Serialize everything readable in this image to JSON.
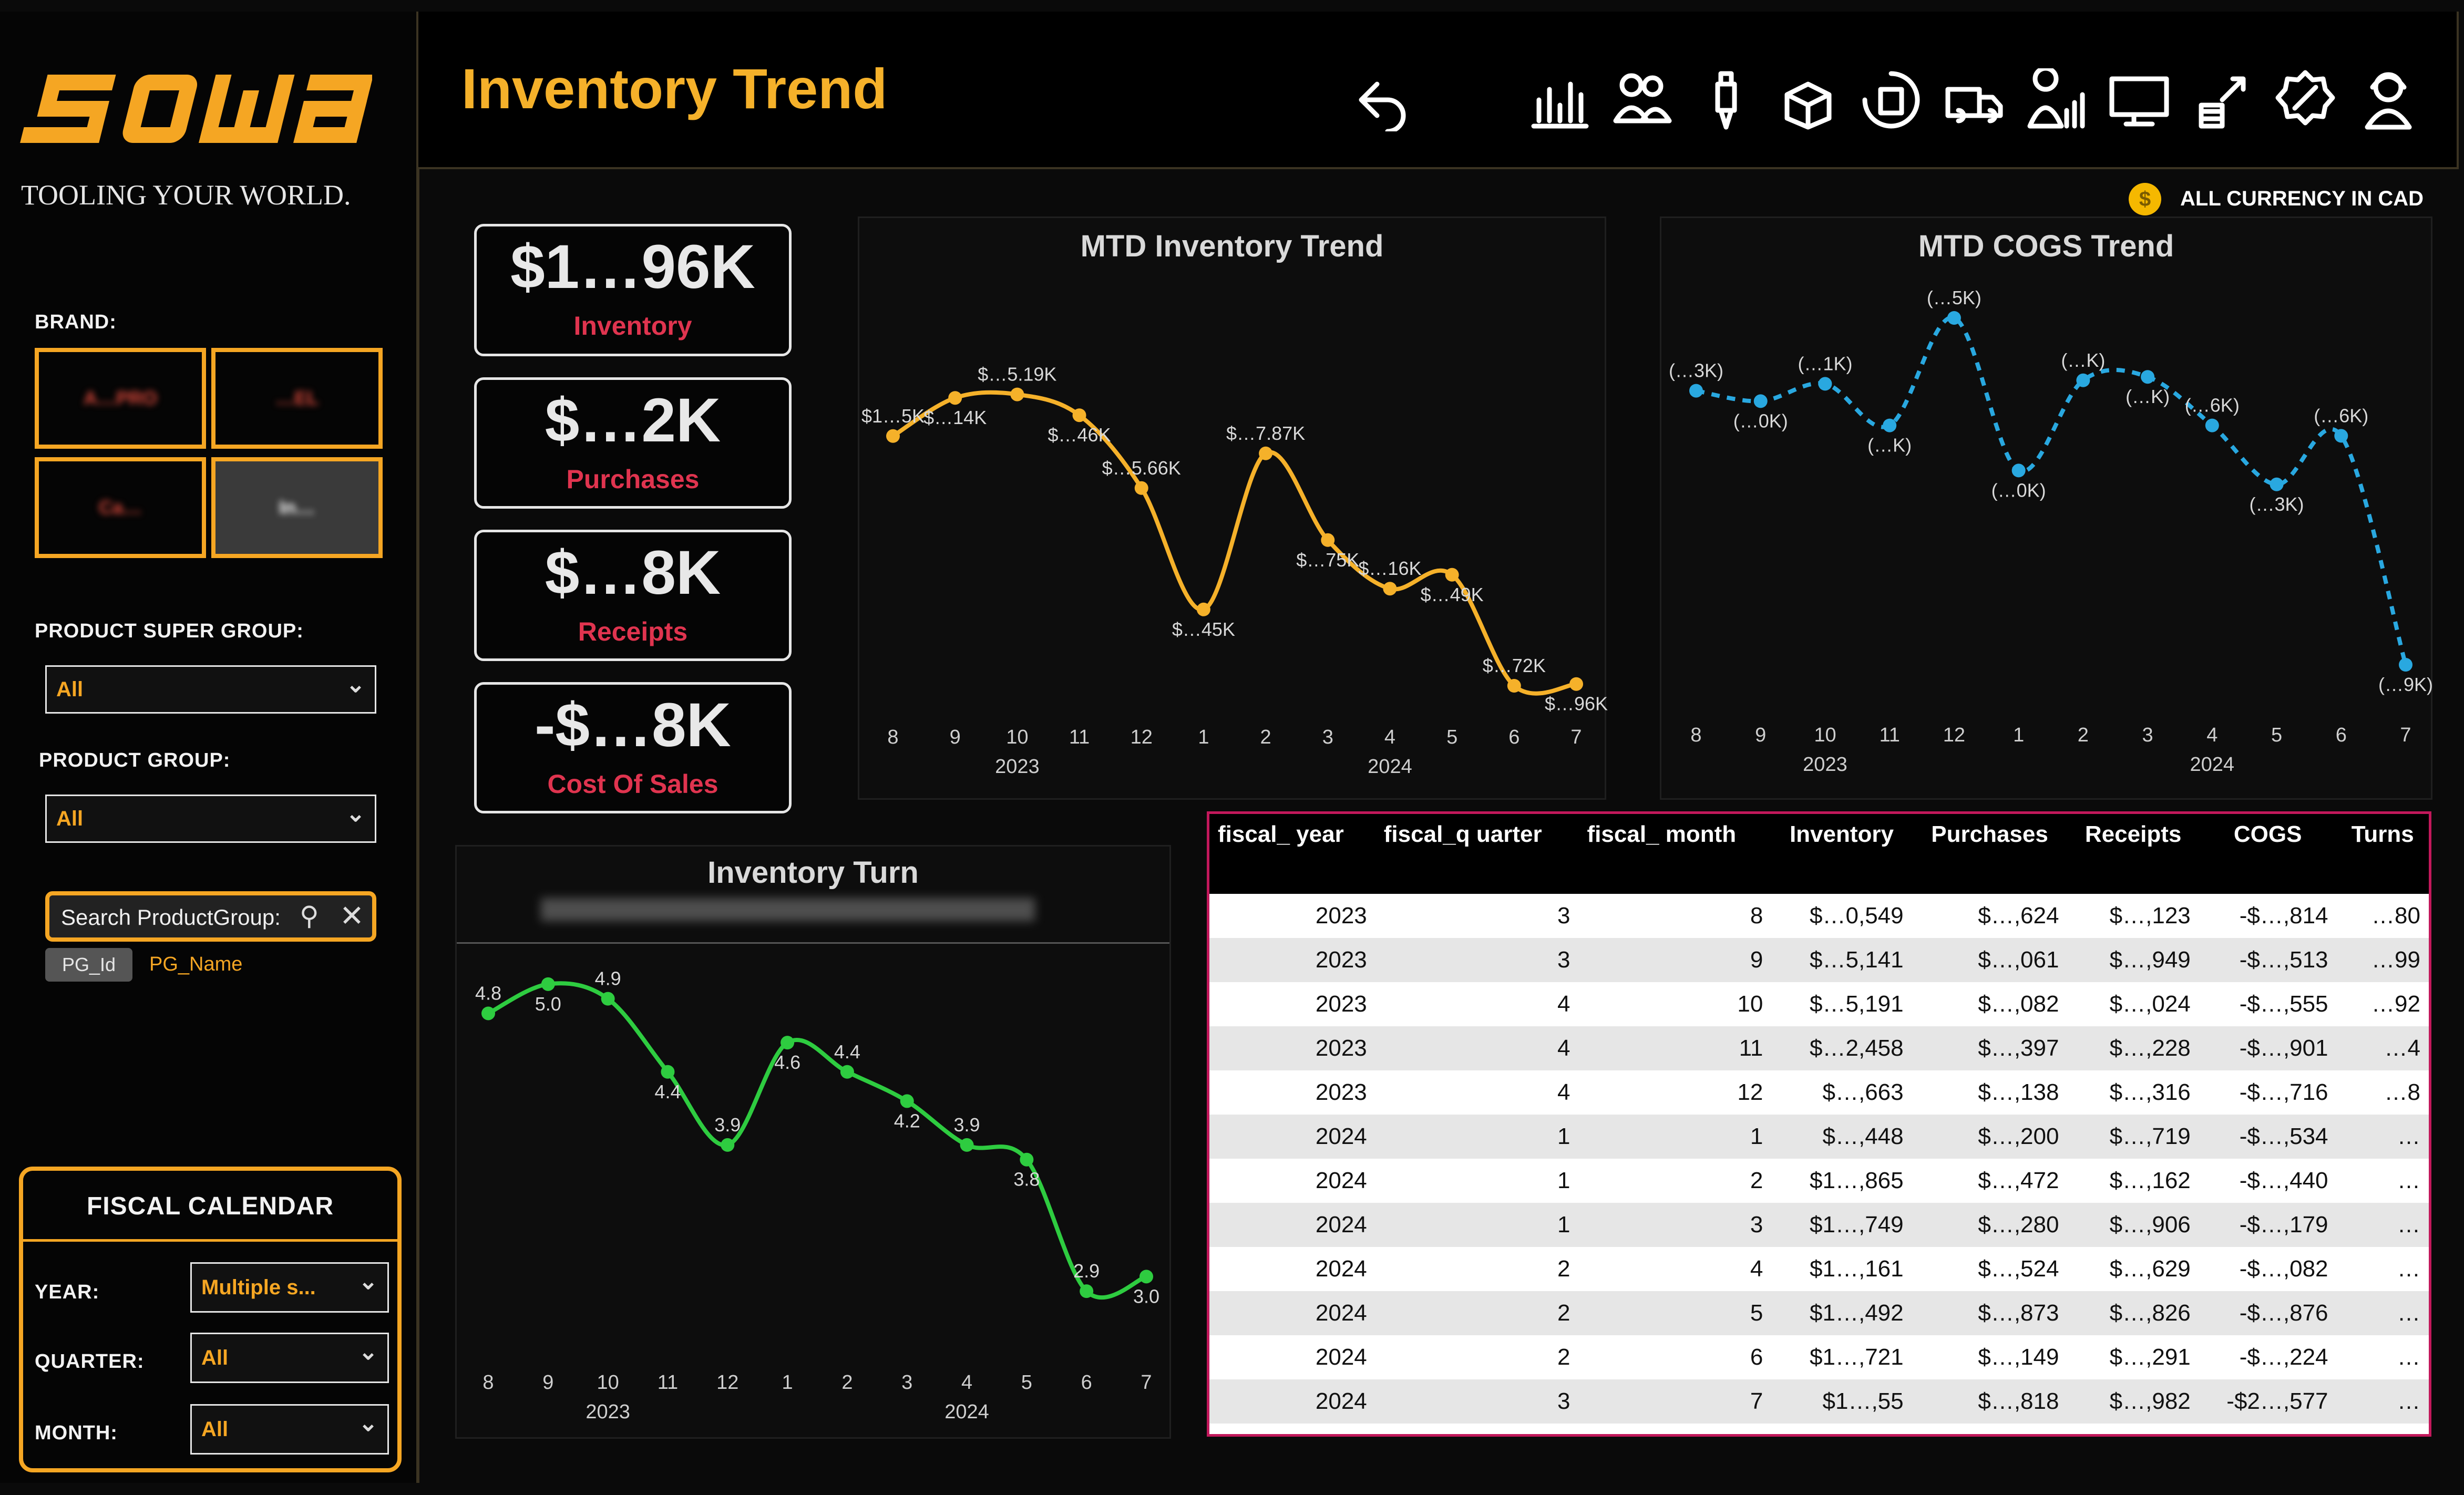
{
  "header": {
    "title": "Inventory Trend",
    "currency_note": "ALL CURRENCY IN CAD",
    "nav_icons": [
      "undo-icon",
      "bar-chart-icon",
      "users-icon",
      "tool-bit-icon",
      "open-box-icon",
      "box-cycle-icon",
      "delivery-truck-icon",
      "sales-person-icon",
      "web-icon",
      "money-growth-icon",
      "discount-icon",
      "support-agent-icon"
    ]
  },
  "logo": {
    "tagline": "TOOLING YOUR WORLD."
  },
  "filters": {
    "brand_label": "BRAND:",
    "brands": [
      "A…PRO",
      "…EL",
      "Ca…",
      "In…"
    ],
    "super_group_label": "PRODUCT SUPER GROUP:",
    "super_group_value": "All",
    "group_label": "PRODUCT GROUP:",
    "group_value": "All",
    "search_placeholder": "Search ProductGroup:",
    "chip_id": "PG_Id",
    "chip_name": "PG_Name"
  },
  "fiscal_calendar": {
    "title": "FISCAL CALENDAR",
    "year_label": "YEAR:",
    "year_value": "Multiple s...",
    "quarter_label": "QUARTER:",
    "quarter_value": "All",
    "month_label": "MONTH:",
    "month_value": "All"
  },
  "kpis": [
    {
      "value": "$1…96K",
      "caption": "Inventory"
    },
    {
      "value": "$…2K",
      "caption": "Purchases"
    },
    {
      "value": "$…8K",
      "caption": "Receipts"
    },
    {
      "value": "-$…8K",
      "caption": "Cost Of Sales"
    }
  ],
  "chart_data": [
    {
      "type": "line",
      "title": "MTD Inventory Trend",
      "x": [
        "8",
        "9",
        "10",
        "11",
        "12",
        "1",
        "2",
        "3",
        "4",
        "5",
        "6",
        "7"
      ],
      "year_labels": [
        "2023",
        "2024"
      ],
      "data_labels": [
        "$1…5K",
        "$…14K",
        "$…5.19K",
        "$…46K",
        "$…5.66K",
        "$…45K",
        "$…7.87K",
        "$…75K",
        "$…16K",
        "$…49K",
        "$…72K",
        "$…96K"
      ],
      "values": [
        0.72,
        0.83,
        0.84,
        0.78,
        0.57,
        0.22,
        0.67,
        0.42,
        0.28,
        0.32,
        0.0,
        0.005
      ],
      "color": "#f5b12a"
    },
    {
      "type": "line",
      "title": "MTD COGS Trend",
      "x": [
        "8",
        "9",
        "10",
        "11",
        "12",
        "1",
        "2",
        "3",
        "4",
        "5",
        "6",
        "7"
      ],
      "year_labels": [
        "2023",
        "2024"
      ],
      "data_labels": [
        "(…3K)",
        "(…0K)",
        "(…1K)",
        "(…K)",
        "(…5K)",
        "(…0K)",
        "(…K)",
        "(…K)",
        "(…6K)",
        "(…3K)",
        "(…6K)",
        "(…9K)"
      ],
      "values": [
        0.79,
        0.76,
        0.81,
        0.69,
        1.0,
        0.56,
        0.82,
        0.83,
        0.69,
        0.52,
        0.66,
        0.0
      ],
      "color": "#29a8e0",
      "dashed": true
    },
    {
      "type": "line",
      "title": "Inventory Turn",
      "x": [
        "8",
        "9",
        "10",
        "11",
        "12",
        "1",
        "2",
        "3",
        "4",
        "5",
        "6",
        "7"
      ],
      "year_labels": [
        "2023",
        "2024"
      ],
      "values": [
        4.8,
        5.0,
        4.9,
        4.4,
        3.9,
        4.6,
        4.4,
        4.2,
        3.9,
        3.8,
        2.9,
        3.0
      ],
      "data_labels": [
        "4.8",
        "5.0",
        "4.9",
        "4.4",
        "3.9",
        "4.6",
        "4.4",
        "4.2",
        "3.9",
        "3.8",
        "2.9",
        "3.0"
      ],
      "color": "#2ecc40"
    }
  ],
  "table": {
    "columns": [
      "fiscal_ year",
      "fiscal_q uarter",
      "fiscal_ month",
      "Inventory",
      "Purchases",
      "Receipts",
      "COGS",
      "Turns"
    ],
    "rows": [
      [
        "2023",
        "3",
        "8",
        "$…0,549",
        "$…,624",
        "$…,123",
        "-$…,814",
        "…80"
      ],
      [
        "2023",
        "3",
        "9",
        "$…5,141",
        "$…,061",
        "$…,949",
        "-$…,513",
        "…99"
      ],
      [
        "2023",
        "4",
        "10",
        "$…5,191",
        "$…,082",
        "$…,024",
        "-$…,555",
        "…92"
      ],
      [
        "2023",
        "4",
        "11",
        "$…2,458",
        "$…,397",
        "$…,228",
        "-$…,901",
        "…4"
      ],
      [
        "2023",
        "4",
        "12",
        "$…,663",
        "$…,138",
        "$…,316",
        "-$…,716",
        "…8"
      ],
      [
        "2024",
        "1",
        "1",
        "$…,448",
        "$…,200",
        "$…,719",
        "-$…,534",
        "…"
      ],
      [
        "2024",
        "1",
        "2",
        "$1…,865",
        "$…,472",
        "$…,162",
        "-$…,440",
        "…"
      ],
      [
        "2024",
        "1",
        "3",
        "$1…,749",
        "$…,280",
        "$…,906",
        "-$…,179",
        "…"
      ],
      [
        "2024",
        "2",
        "4",
        "$1…,161",
        "$…,524",
        "$…,629",
        "-$…,082",
        "…"
      ],
      [
        "2024",
        "2",
        "5",
        "$1…,492",
        "$…,873",
        "$…,826",
        "-$…,876",
        "…"
      ],
      [
        "2024",
        "2",
        "6",
        "$1…,721",
        "$…,149",
        "$…,291",
        "-$…,224",
        "…"
      ],
      [
        "2024",
        "3",
        "7",
        "$1…,55",
        "$…,818",
        "$…,982",
        "-$2…,577",
        "…"
      ]
    ]
  }
}
